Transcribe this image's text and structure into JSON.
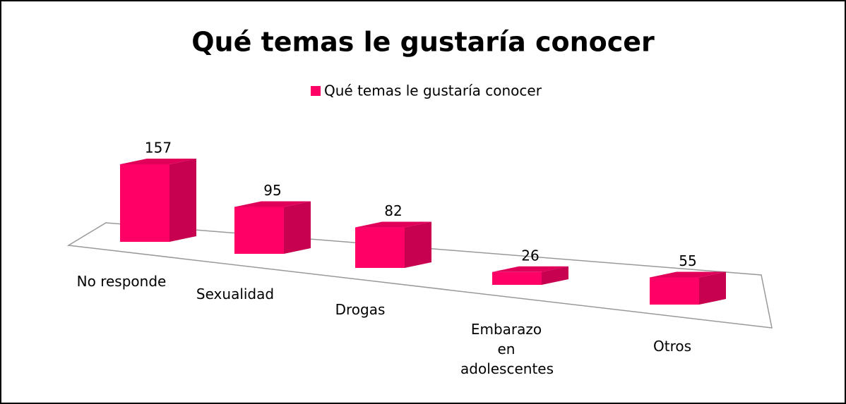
{
  "chart_data": {
    "type": "bar3d",
    "title": "Qué temas le gustaría conocer",
    "categories": [
      "No responde",
      "Sexualidad",
      "Drogas",
      "Embarazo en adolescentes",
      "Otros"
    ],
    "series": [
      {
        "name": "Qué temas le gustaría conocer",
        "color": "#ff0066",
        "values": [
          157,
          95,
          82,
          26,
          55
        ]
      }
    ],
    "legend": "top"
  }
}
